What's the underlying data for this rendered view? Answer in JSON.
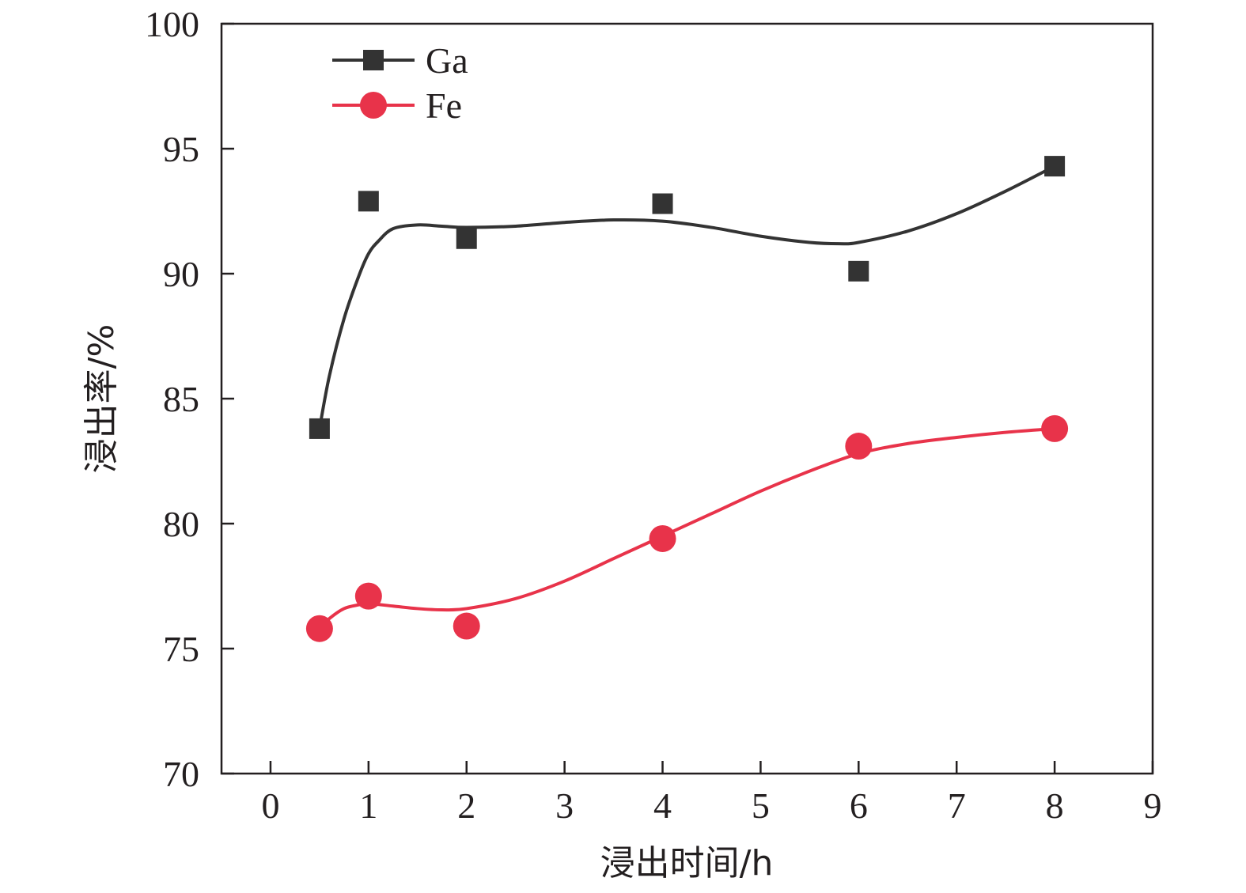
{
  "chart_data": {
    "type": "scatter",
    "xlabel": "浸出时间/h",
    "ylabel": "浸出率/%",
    "xlim": [
      -0.5,
      9
    ],
    "ylim": [
      70,
      100
    ],
    "x_ticks": [
      0,
      1,
      2,
      3,
      4,
      5,
      6,
      7,
      8,
      9
    ],
    "y_ticks": [
      70,
      75,
      80,
      85,
      90,
      95,
      100
    ],
    "grid": false,
    "legend_position": "top-left",
    "series": [
      {
        "name": "Ga",
        "color": "#333333",
        "marker": "square",
        "x": [
          0.5,
          1,
          2,
          4,
          6,
          8
        ],
        "y": [
          83.8,
          92.9,
          91.4,
          92.8,
          90.1,
          94.3
        ],
        "fit_curve": {
          "x": [
            0.5,
            0.6,
            0.75,
            0.9,
            1.0,
            1.1,
            1.25,
            1.5,
            1.75,
            2.0,
            2.5,
            3.0,
            3.5,
            4.0,
            4.5,
            5.0,
            5.5,
            5.8,
            6.0,
            6.5,
            7.0,
            7.5,
            8.0
          ],
          "y": [
            83.8,
            85.9,
            88.2,
            89.9,
            90.8,
            91.3,
            91.8,
            91.95,
            91.9,
            91.85,
            91.9,
            92.05,
            92.15,
            92.1,
            91.85,
            91.5,
            91.25,
            91.2,
            91.25,
            91.7,
            92.4,
            93.3,
            94.3
          ]
        }
      },
      {
        "name": "Fe",
        "color": "#e8334a",
        "marker": "circle",
        "x": [
          0.5,
          1,
          2,
          4,
          6,
          8
        ],
        "y": [
          75.8,
          77.1,
          75.9,
          79.4,
          83.1,
          83.8
        ],
        "fit_curve": {
          "x": [
            0.5,
            0.6,
            0.75,
            0.9,
            1.0,
            1.25,
            1.5,
            1.75,
            2.0,
            2.5,
            3.0,
            3.5,
            4.0,
            4.5,
            5.0,
            5.5,
            6.0,
            6.5,
            7.0,
            7.5,
            8.0
          ],
          "y": [
            75.8,
            76.2,
            76.6,
            76.75,
            76.8,
            76.7,
            76.6,
            76.55,
            76.6,
            77.0,
            77.7,
            78.6,
            79.5,
            80.4,
            81.3,
            82.1,
            82.8,
            83.2,
            83.45,
            83.65,
            83.8
          ]
        }
      }
    ]
  }
}
